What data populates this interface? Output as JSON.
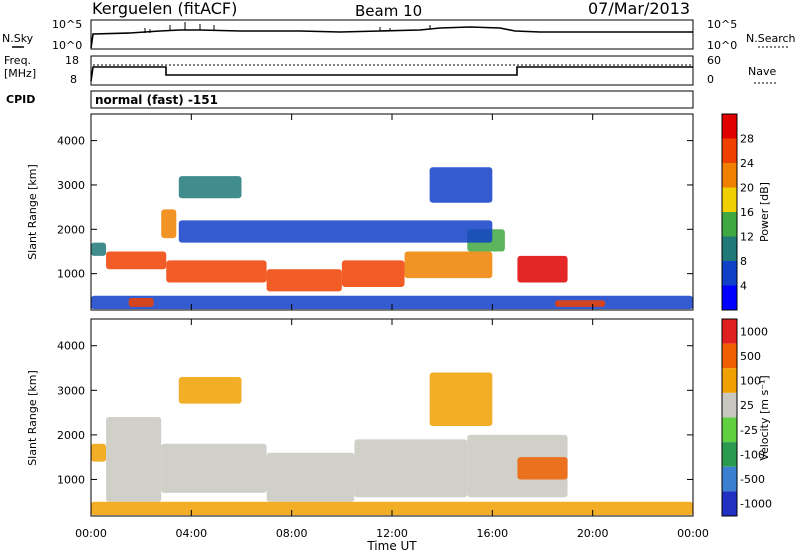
{
  "header": {
    "station": "Kerguelen (fitACF)",
    "beam": "Beam 10",
    "date": "07/Mar/2013"
  },
  "noise_panel": {
    "left_label": "N.Sky",
    "left_ticks": [
      "10^5",
      "10^0"
    ],
    "right_label": "N.Search",
    "right_ticks": [
      "10^5",
      "10^0"
    ]
  },
  "freq_panel": {
    "left_label_line1": "Freq.",
    "left_label_line2": "[MHz]",
    "left_ticks": [
      "18",
      "8"
    ],
    "right_label": "Nave",
    "right_ticks": [
      "60",
      "0"
    ]
  },
  "cpid": {
    "label": "CPID",
    "value": "normal (fast) -151"
  },
  "x_axis": {
    "label": "Time UT",
    "ticks": [
      "00:00",
      "04:00",
      "08:00",
      "12:00",
      "16:00",
      "20:00",
      "00:00"
    ]
  },
  "chart_data": [
    {
      "type": "heatmap",
      "name": "power",
      "xlabel": "Time UT",
      "ylabel": "Slant Range [km]",
      "xlim_hours": [
        0,
        24
      ],
      "ylim": [
        180,
        4600
      ],
      "y_ticks": [
        "1000",
        "2000",
        "3000",
        "4000"
      ],
      "colorbar": {
        "label": "Power [dB]",
        "tick_labels": [
          "4",
          "8",
          "12",
          "16",
          "20",
          "24",
          "28"
        ],
        "range": [
          0,
          32
        ],
        "colors": [
          "#0000ff",
          "#1040c8",
          "#207878",
          "#40a840",
          "#f0d000",
          "#f08000",
          "#f04000",
          "#e00000"
        ]
      },
      "regions": [
        {
          "t": [
            0.0,
            0.6
          ],
          "r": [
            1400,
            1700
          ],
          "level": 10
        },
        {
          "t": [
            0.6,
            3.0
          ],
          "r": [
            1100,
            1500
          ],
          "level": 24
        },
        {
          "t": [
            2.8,
            3.4
          ],
          "r": [
            1800,
            2450
          ],
          "level": 22
        },
        {
          "t": [
            3.0,
            7.0
          ],
          "r": [
            800,
            1300
          ],
          "level": 27
        },
        {
          "t": [
            7.0,
            10.0
          ],
          "r": [
            600,
            1100
          ],
          "level": 26
        },
        {
          "t": [
            10.0,
            12.5
          ],
          "r": [
            700,
            1300
          ],
          "level": 25
        },
        {
          "t": [
            12.5,
            16.0
          ],
          "r": [
            900,
            1500
          ],
          "level": 22
        },
        {
          "t": [
            15.0,
            16.5
          ],
          "r": [
            1500,
            2000
          ],
          "level": 12
        },
        {
          "t": [
            17.0,
            19.0
          ],
          "r": [
            800,
            1400
          ],
          "level": 28
        },
        {
          "t": [
            3.5,
            16.0
          ],
          "r": [
            1700,
            2200
          ],
          "level": 6
        },
        {
          "t": [
            13.5,
            16.0
          ],
          "r": [
            2600,
            3400
          ],
          "level": 4
        },
        {
          "t": [
            3.5,
            6.0
          ],
          "r": [
            2700,
            3200
          ],
          "level": 8
        },
        {
          "t": [
            0.0,
            24.0
          ],
          "r": [
            200,
            500
          ],
          "level": 6
        },
        {
          "t": [
            1.5,
            2.5
          ],
          "r": [
            250,
            450
          ],
          "level": 26
        },
        {
          "t": [
            18.5,
            20.5
          ],
          "r": [
            250,
            400
          ],
          "level": 26
        }
      ]
    },
    {
      "type": "heatmap",
      "name": "velocity",
      "xlabel": "Time UT",
      "ylabel": "Slant Range [km]",
      "xlim_hours": [
        0,
        24
      ],
      "ylim": [
        180,
        4600
      ],
      "y_ticks": [
        "1000",
        "2000",
        "3000",
        "4000"
      ],
      "colorbar": {
        "label": "Velocity [m s⁻¹]",
        "tick_labels": [
          "1000",
          "500",
          "100",
          "25",
          "-25",
          "-100",
          "-500",
          "-1000"
        ],
        "colors": [
          "#2030c0",
          "#3a7fd0",
          "#2a9a50",
          "#60d040",
          "#c8c8c0",
          "#f0a000",
          "#f06000",
          "#e02020"
        ]
      },
      "regions": [
        {
          "t": [
            0.0,
            0.6
          ],
          "r": [
            1400,
            1800
          ],
          "class": "-100"
        },
        {
          "t": [
            0.6,
            2.8
          ],
          "r": [
            500,
            2400
          ],
          "class": "ground"
        },
        {
          "t": [
            2.8,
            7.0
          ],
          "r": [
            700,
            1800
          ],
          "class": "ground"
        },
        {
          "t": [
            7.0,
            10.5
          ],
          "r": [
            500,
            1600
          ],
          "class": "ground"
        },
        {
          "t": [
            10.5,
            15.0
          ],
          "r": [
            600,
            1900
          ],
          "class": "ground"
        },
        {
          "t": [
            15.0,
            19.0
          ],
          "r": [
            600,
            2000
          ],
          "class": "ground"
        },
        {
          "t": [
            13.5,
            16.0
          ],
          "r": [
            2200,
            3400
          ],
          "class": "-100"
        },
        {
          "t": [
            3.5,
            6.0
          ],
          "r": [
            2700,
            3300
          ],
          "class": "-100"
        },
        {
          "t": [
            17.0,
            19.0
          ],
          "r": [
            1000,
            1500
          ],
          "class": "-500"
        },
        {
          "t": [
            0.0,
            24.0
          ],
          "r": [
            200,
            500
          ],
          "class": "-100"
        }
      ]
    }
  ]
}
